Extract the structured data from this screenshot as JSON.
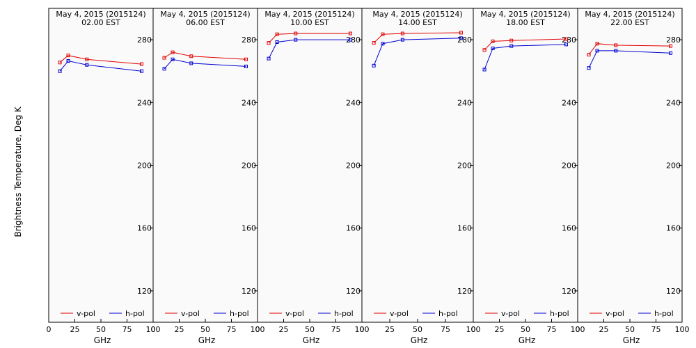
{
  "figure": {
    "ylabel": "Brightness Temperature, Deg K"
  },
  "colors": {
    "v_pol": "#e00000",
    "h_pol": "#0000d0",
    "panel_bg": "#fafafa",
    "axis": "#000000"
  },
  "chart_data": [
    {
      "type": "line",
      "title": "May  4, 2015 (2015124)",
      "subtitle": "02.00 EST",
      "xlabel": "GHz",
      "ylabel": "Brightness Temperature, Deg K",
      "xlim": [
        0,
        100
      ],
      "ylim": [
        100,
        300
      ],
      "x_ticks": [
        0,
        25,
        50,
        75,
        100
      ],
      "x_tick_labels": [
        "0",
        "25",
        "50",
        "75",
        "100"
      ],
      "y_ticks": [
        120,
        160,
        200,
        240,
        280
      ],
      "legend": "bottom",
      "grid": false,
      "series": [
        {
          "name": "v-pol",
          "x": [
            10.7,
            18.7,
            36.5,
            89
          ],
          "y": [
            265.5,
            270,
            267.5,
            264.5
          ]
        },
        {
          "name": "h-pol",
          "x": [
            10.7,
            18.7,
            36.5,
            89
          ],
          "y": [
            260,
            266.5,
            264,
            260
          ]
        }
      ]
    },
    {
      "type": "line",
      "title": "May  4, 2015 (2015124)",
      "subtitle": "06.00 EST",
      "xlabel": "GHz",
      "xlim": [
        0,
        100
      ],
      "ylim": [
        100,
        300
      ],
      "x_ticks": [
        0,
        25,
        50,
        75,
        100
      ],
      "x_tick_labels": [
        "0",
        "25",
        "50",
        "75",
        "100"
      ],
      "y_ticks": [
        120,
        160,
        200,
        240,
        280
      ],
      "legend": "bottom",
      "grid": false,
      "series": [
        {
          "name": "v-pol",
          "x": [
            10.7,
            18.7,
            36.5,
            89
          ],
          "y": [
            268.5,
            272,
            269.5,
            267.5
          ]
        },
        {
          "name": "h-pol",
          "x": [
            10.7,
            18.7,
            36.5,
            89
          ],
          "y": [
            261.5,
            267.5,
            265,
            263
          ]
        }
      ]
    },
    {
      "type": "line",
      "title": "May  4, 2015 (2015124)",
      "subtitle": "10.00 EST",
      "xlabel": "GHz",
      "xlim": [
        0,
        100
      ],
      "ylim": [
        100,
        300
      ],
      "x_ticks": [
        0,
        25,
        50,
        75,
        100
      ],
      "x_tick_labels": [
        "0",
        "25",
        "50",
        "75",
        "100"
      ],
      "y_ticks": [
        120,
        160,
        200,
        240,
        280
      ],
      "legend": "bottom",
      "grid": false,
      "series": [
        {
          "name": "v-pol",
          "x": [
            10.7,
            18.7,
            36.5,
            89
          ],
          "y": [
            278,
            283.5,
            284,
            284
          ]
        },
        {
          "name": "h-pol",
          "x": [
            10.7,
            18.7,
            36.5,
            89
          ],
          "y": [
            268,
            278.5,
            280,
            280
          ]
        }
      ]
    },
    {
      "type": "line",
      "title": "May  4, 2015 (2015124)",
      "subtitle": "14.00 EST",
      "xlabel": "GHz",
      "xlim": [
        0,
        100
      ],
      "ylim": [
        100,
        300
      ],
      "x_ticks": [
        0,
        25,
        50,
        75,
        100
      ],
      "x_tick_labels": [
        "0",
        "25",
        "50",
        "75",
        "100"
      ],
      "y_ticks": [
        120,
        160,
        200,
        240,
        280
      ],
      "legend": "bottom",
      "grid": false,
      "series": [
        {
          "name": "v-pol",
          "x": [
            10.7,
            18.7,
            36.5,
            89
          ],
          "y": [
            278,
            283.5,
            284,
            284.5
          ]
        },
        {
          "name": "h-pol",
          "x": [
            10.7,
            18.7,
            36.5,
            89
          ],
          "y": [
            263.5,
            277.5,
            280,
            281
          ]
        }
      ]
    },
    {
      "type": "line",
      "title": "May  4, 2015 (2015124)",
      "subtitle": "18.00 EST",
      "xlabel": "GHz",
      "xlim": [
        0,
        100
      ],
      "ylim": [
        100,
        300
      ],
      "x_ticks": [
        0,
        25,
        50,
        75,
        100
      ],
      "x_tick_labels": [
        "0",
        "25",
        "50",
        "75",
        "100"
      ],
      "y_ticks": [
        120,
        160,
        200,
        240,
        280
      ],
      "legend": "bottom",
      "grid": false,
      "series": [
        {
          "name": "v-pol",
          "x": [
            10.7,
            18.7,
            36.5,
            89
          ],
          "y": [
            273.5,
            279,
            279.5,
            280.5
          ]
        },
        {
          "name": "h-pol",
          "x": [
            10.7,
            18.7,
            36.5,
            89
          ],
          "y": [
            261,
            274.5,
            276,
            277
          ]
        }
      ]
    },
    {
      "type": "line",
      "title": "May  4, 2015 (2015124)",
      "subtitle": "22.00 EST",
      "xlabel": "GHz",
      "xlim": [
        0,
        100
      ],
      "ylim": [
        100,
        300
      ],
      "x_ticks": [
        0,
        25,
        50,
        75,
        100
      ],
      "x_tick_labels": [
        "0",
        "25",
        "50",
        "75",
        "100"
      ],
      "y_ticks": [
        120,
        160,
        200,
        240,
        280
      ],
      "legend": "bottom",
      "grid": false,
      "series": [
        {
          "name": "v-pol",
          "x": [
            10.7,
            18.7,
            36.5,
            89
          ],
          "y": [
            270.5,
            277.5,
            276.5,
            276
          ]
        },
        {
          "name": "h-pol",
          "x": [
            10.7,
            18.7,
            36.5,
            89
          ],
          "y": [
            262,
            273,
            273,
            271.5
          ]
        }
      ]
    }
  ]
}
